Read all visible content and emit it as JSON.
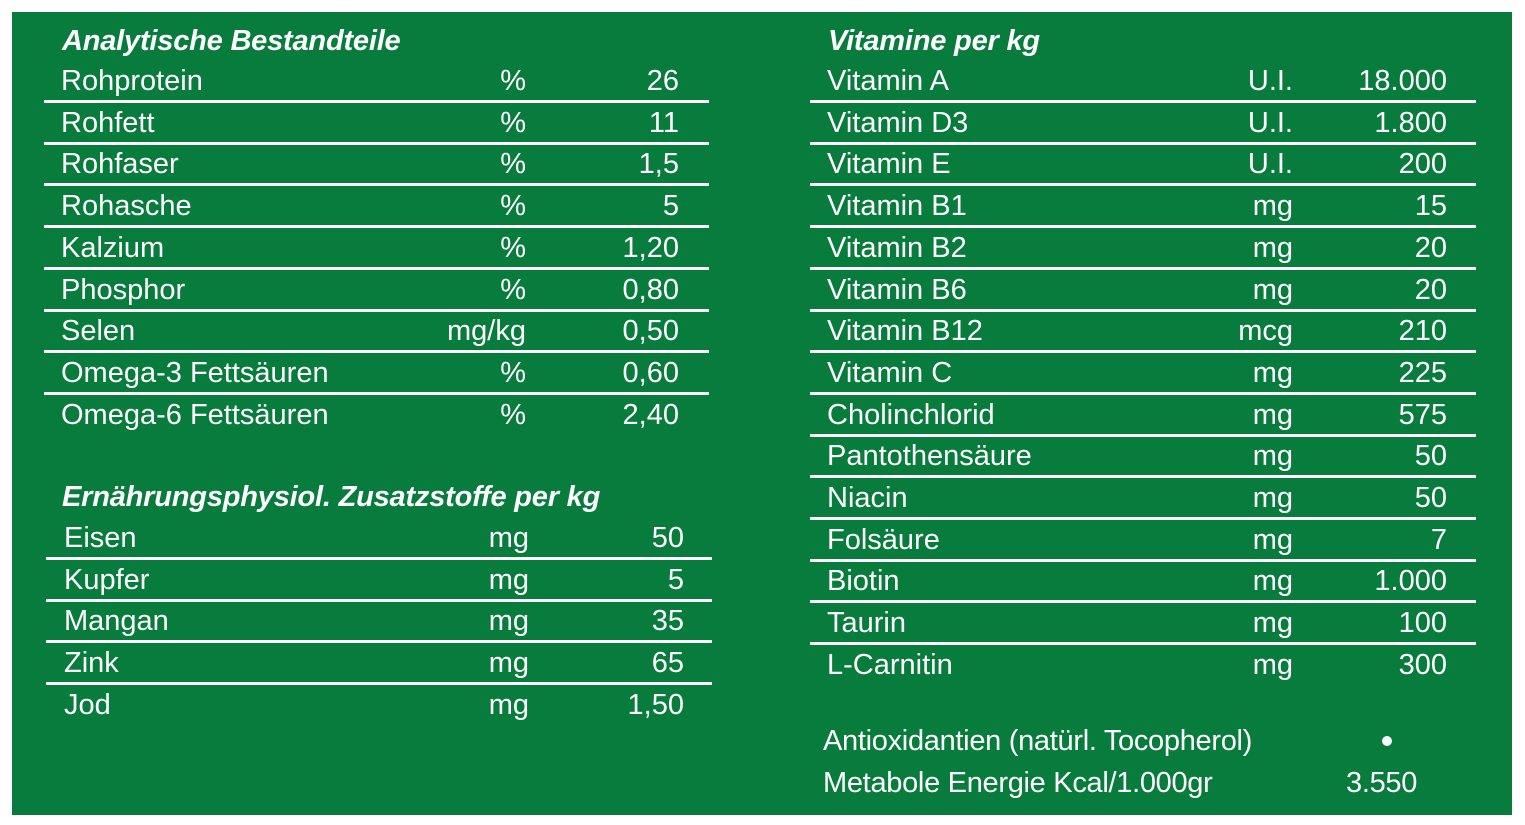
{
  "analytische": {
    "title": "Analytische Bestandteile",
    "rows": [
      {
        "name": "Rohprotein",
        "unit": "%",
        "value": "26"
      },
      {
        "name": "Rohfett",
        "unit": "%",
        "value": "11"
      },
      {
        "name": "Rohfaser",
        "unit": "%",
        "value": "1,5"
      },
      {
        "name": "Rohasche",
        "unit": "%",
        "value": "5"
      },
      {
        "name": "Kalzium",
        "unit": "%",
        "value": "1,20"
      },
      {
        "name": "Phosphor",
        "unit": "%",
        "value": "0,80"
      },
      {
        "name": "Selen",
        "unit": "mg/kg",
        "value": "0,50"
      },
      {
        "name": "Omega-3 Fettsäuren",
        "unit": "%",
        "value": "0,60"
      },
      {
        "name": "Omega-6 Fettsäuren",
        "unit": "%",
        "value": "2,40"
      }
    ]
  },
  "zusatzstoffe": {
    "title": "Ernährungsphysiol. Zusatzstoffe per kg",
    "rows": [
      {
        "name": "Eisen",
        "unit": "mg",
        "value": "50"
      },
      {
        "name": "Kupfer",
        "unit": "mg",
        "value": "5"
      },
      {
        "name": "Mangan",
        "unit": "mg",
        "value": "35"
      },
      {
        "name": "Zink",
        "unit": "mg",
        "value": "65"
      },
      {
        "name": "Jod",
        "unit": "mg",
        "value": "1,50"
      }
    ]
  },
  "vitamine": {
    "title": "Vitamine per kg",
    "rows": [
      {
        "name": "Vitamin A",
        "unit": "U.I.",
        "value": "18.000"
      },
      {
        "name": "Vitamin D3",
        "unit": "U.I.",
        "value": "1.800"
      },
      {
        "name": "Vitamin E",
        "unit": "U.I.",
        "value": "200"
      },
      {
        "name": "Vitamin B1",
        "unit": "mg",
        "value": "15"
      },
      {
        "name": "Vitamin B2",
        "unit": "mg",
        "value": "20"
      },
      {
        "name": "Vitamin B6",
        "unit": "mg",
        "value": "20"
      },
      {
        "name": "Vitamin B12",
        "unit": "mcg",
        "value": "210"
      },
      {
        "name": "Vitamin C",
        "unit": "mg",
        "value": "225"
      },
      {
        "name": "Cholinchlorid",
        "unit": "mg",
        "value": "575"
      },
      {
        "name": "Pantothensäure",
        "unit": "mg",
        "value": "50"
      },
      {
        "name": "Niacin",
        "unit": "mg",
        "value": "50"
      },
      {
        "name": "Folsäure",
        "unit": "mg",
        "value": "7"
      },
      {
        "name": "Biotin",
        "unit": "mg",
        "value": "1.000"
      },
      {
        "name": "Taurin",
        "unit": "mg",
        "value": "100"
      },
      {
        "name": "L-Carnitin",
        "unit": "mg",
        "value": "300"
      }
    ]
  },
  "footer": {
    "antioxidantien_label": "Antioxidantien (natürl. Tocopherol)",
    "antioxidantien_icon": "bullet-dot-icon",
    "energie_label": "Metabole Energie Kcal/1.000gr",
    "energie_value": "3.550"
  },
  "colors": {
    "background": "#087c3c",
    "text": "#ffffff"
  }
}
